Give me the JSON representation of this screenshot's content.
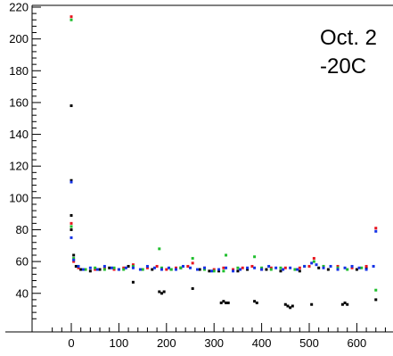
{
  "chart_data": {
    "type": "scatter",
    "title": "",
    "xlabel": "",
    "ylabel": "",
    "xlim": [
      -20,
      645
    ],
    "ylim": [
      20,
      222
    ],
    "x_ticks": [
      0,
      100,
      200,
      300,
      400,
      500,
      600
    ],
    "y_ticks": [
      40,
      60,
      80,
      100,
      120,
      140,
      160,
      180,
      200,
      220
    ],
    "annotations": [
      "Oct. 2",
      "-20C"
    ],
    "colors": {
      "black": "#000000",
      "red": "#e8141e",
      "green": "#1fbe2d",
      "blue": "#1432e6"
    },
    "series": [
      {
        "color": "black",
        "points": [
          [
            0,
            158
          ],
          [
            0,
            111
          ],
          [
            0,
            89
          ],
          [
            0,
            80
          ],
          [
            5,
            64
          ],
          [
            10,
            57
          ],
          [
            20,
            55
          ],
          [
            40,
            54
          ],
          [
            60,
            55
          ],
          [
            80,
            56
          ],
          [
            100,
            55
          ],
          [
            120,
            57
          ],
          [
            130,
            47
          ],
          [
            150,
            55
          ],
          [
            170,
            55
          ],
          [
            185,
            41
          ],
          [
            190,
            40
          ],
          [
            195,
            41
          ],
          [
            210,
            55
          ],
          [
            230,
            56
          ],
          [
            255,
            43
          ],
          [
            270,
            55
          ],
          [
            290,
            54
          ],
          [
            310,
            54
          ],
          [
            315,
            34
          ],
          [
            320,
            35
          ],
          [
            325,
            34
          ],
          [
            330,
            34
          ],
          [
            350,
            54
          ],
          [
            370,
            55
          ],
          [
            385,
            35
          ],
          [
            390,
            34
          ],
          [
            410,
            55
          ],
          [
            440,
            54
          ],
          [
            450,
            33
          ],
          [
            455,
            32
          ],
          [
            460,
            31
          ],
          [
            465,
            32
          ],
          [
            470,
            55
          ],
          [
            480,
            54
          ],
          [
            505,
            33
          ],
          [
            520,
            56
          ],
          [
            540,
            55
          ],
          [
            570,
            33
          ],
          [
            575,
            34
          ],
          [
            580,
            33
          ],
          [
            600,
            55
          ],
          [
            620,
            56
          ],
          [
            640,
            36
          ]
        ]
      },
      {
        "color": "red",
        "points": [
          [
            0,
            214
          ],
          [
            0,
            84
          ],
          [
            5,
            60
          ],
          [
            15,
            56
          ],
          [
            30,
            55
          ],
          [
            50,
            55
          ],
          [
            70,
            56
          ],
          [
            90,
            55
          ],
          [
            110,
            56
          ],
          [
            130,
            58
          ],
          [
            160,
            56
          ],
          [
            180,
            57
          ],
          [
            200,
            55
          ],
          [
            220,
            56
          ],
          [
            245,
            57
          ],
          [
            255,
            59
          ],
          [
            280,
            56
          ],
          [
            300,
            55
          ],
          [
            320,
            56
          ],
          [
            340,
            55
          ],
          [
            360,
            56
          ],
          [
            380,
            57
          ],
          [
            400,
            55
          ],
          [
            420,
            56
          ],
          [
            450,
            56
          ],
          [
            480,
            56
          ],
          [
            500,
            57
          ],
          [
            510,
            62
          ],
          [
            530,
            57
          ],
          [
            560,
            57
          ],
          [
            590,
            56
          ],
          [
            620,
            57
          ],
          [
            640,
            81
          ]
        ]
      },
      {
        "color": "green",
        "points": [
          [
            0,
            212
          ],
          [
            0,
            82
          ],
          [
            5,
            62
          ],
          [
            15,
            57
          ],
          [
            30,
            55
          ],
          [
            50,
            56
          ],
          [
            70,
            55
          ],
          [
            90,
            56
          ],
          [
            110,
            55
          ],
          [
            130,
            57
          ],
          [
            150,
            55
          ],
          [
            185,
            68
          ],
          [
            190,
            56
          ],
          [
            210,
            55
          ],
          [
            230,
            56
          ],
          [
            255,
            62
          ],
          [
            280,
            55
          ],
          [
            300,
            54
          ],
          [
            320,
            54
          ],
          [
            325,
            64
          ],
          [
            350,
            56
          ],
          [
            385,
            63
          ],
          [
            400,
            56
          ],
          [
            420,
            55
          ],
          [
            440,
            56
          ],
          [
            470,
            55
          ],
          [
            490,
            57
          ],
          [
            510,
            60
          ],
          [
            530,
            57
          ],
          [
            560,
            56
          ],
          [
            580,
            55
          ],
          [
            610,
            56
          ],
          [
            640,
            42
          ]
        ]
      },
      {
        "color": "blue",
        "points": [
          [
            0,
            110
          ],
          [
            0,
            75
          ],
          [
            5,
            61
          ],
          [
            15,
            57
          ],
          [
            25,
            55
          ],
          [
            40,
            56
          ],
          [
            55,
            55
          ],
          [
            70,
            57
          ],
          [
            85,
            56
          ],
          [
            100,
            55
          ],
          [
            115,
            56
          ],
          [
            130,
            56
          ],
          [
            145,
            55
          ],
          [
            160,
            57
          ],
          [
            175,
            56
          ],
          [
            190,
            55
          ],
          [
            205,
            56
          ],
          [
            220,
            55
          ],
          [
            235,
            57
          ],
          [
            250,
            56
          ],
          [
            265,
            55
          ],
          [
            280,
            56
          ],
          [
            295,
            54
          ],
          [
            310,
            55
          ],
          [
            325,
            56
          ],
          [
            340,
            54
          ],
          [
            355,
            55
          ],
          [
            370,
            56
          ],
          [
            385,
            56
          ],
          [
            400,
            55
          ],
          [
            415,
            57
          ],
          [
            430,
            56
          ],
          [
            445,
            55
          ],
          [
            460,
            56
          ],
          [
            475,
            55
          ],
          [
            490,
            57
          ],
          [
            505,
            59
          ],
          [
            515,
            58
          ],
          [
            530,
            56
          ],
          [
            545,
            57
          ],
          [
            560,
            55
          ],
          [
            575,
            56
          ],
          [
            590,
            57
          ],
          [
            605,
            56
          ],
          [
            620,
            55
          ],
          [
            635,
            57
          ],
          [
            640,
            79
          ]
        ]
      }
    ]
  }
}
